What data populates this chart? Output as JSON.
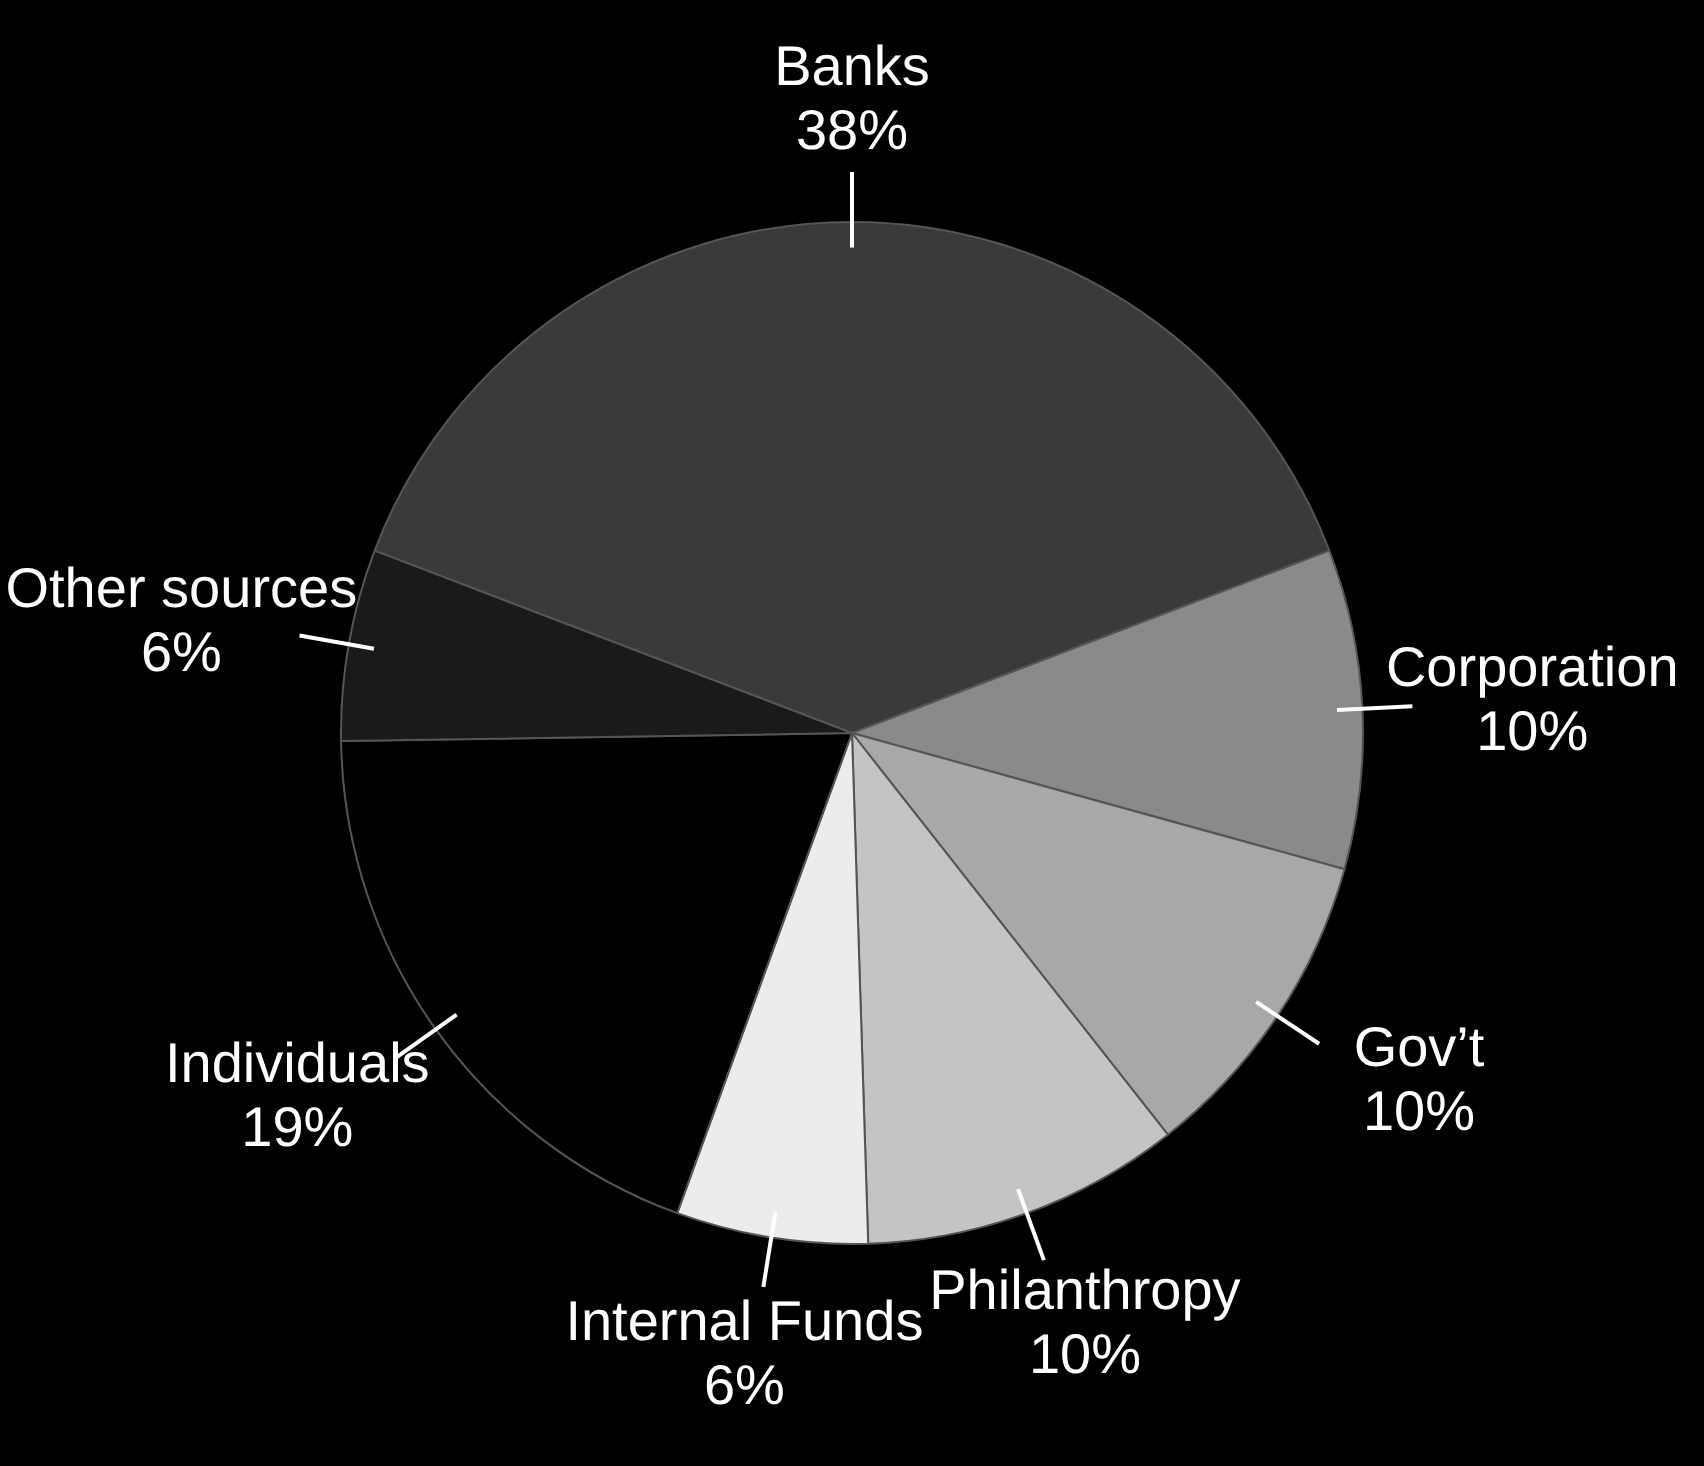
{
  "chart_data": {
    "type": "pie",
    "categories": [
      "Banks",
      "Corporation",
      "Gov’t",
      "Philanthropy",
      "Internal Funds",
      "Individuals",
      "Other sources"
    ],
    "values": [
      38,
      10,
      10,
      10,
      6,
      19,
      6
    ],
    "value_labels": [
      "38%",
      "10%",
      "10%",
      "10%",
      "6%",
      "19%",
      "6%"
    ],
    "colors": [
      "#3a3a3a",
      "#8a8a8a",
      "#a8a8a8",
      "#c4c4c4",
      "#ececec",
      "#000000",
      "#1a1a1a"
    ],
    "legend": false
  }
}
